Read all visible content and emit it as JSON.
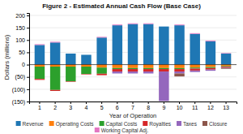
{
  "chart_data": {
    "type": "bar",
    "stacked": true,
    "title": "Figure 2 - Estimated Annual Cash Flow (Base Case)",
    "xlabel": "Year of Operation",
    "ylabel": "Dollars (millions)",
    "categories": [
      "1",
      "2",
      "3",
      "4",
      "5",
      "6",
      "7",
      "8",
      "9",
      "10",
      "11",
      "12",
      "13"
    ],
    "series": [
      {
        "name": "Revenue",
        "values": [
          80,
          90,
          45,
          40,
          110,
          160,
          165,
          165,
          155,
          160,
          125,
          95,
          45
        ]
      },
      {
        "name": "Operating Costs",
        "values": [
          -8,
          -8,
          -8,
          -8,
          -12,
          -14,
          -14,
          -14,
          -14,
          -14,
          -12,
          -10,
          -6
        ]
      },
      {
        "name": "Capital Costs",
        "values": [
          -50,
          -95,
          -60,
          -30,
          -25,
          -4,
          -4,
          -4,
          -4,
          -4,
          -4,
          -4,
          -2
        ]
      },
      {
        "name": "Royalties",
        "values": [
          -4,
          -4,
          -2,
          -2,
          -6,
          -10,
          -10,
          -10,
          -10,
          -10,
          -8,
          -6,
          -3
        ]
      },
      {
        "name": "Taxes",
        "values": [
          0,
          0,
          0,
          0,
          0,
          -8,
          -8,
          -8,
          -120,
          -8,
          -6,
          -5,
          -2
        ]
      },
      {
        "name": "Closure",
        "values": [
          0,
          0,
          0,
          0,
          0,
          0,
          0,
          0,
          0,
          -12,
          0,
          0,
          -4
        ]
      },
      {
        "name": "Working Capital Adj.",
        "values": [
          3,
          3,
          0,
          0,
          3,
          3,
          3,
          3,
          0,
          3,
          3,
          3,
          2
        ]
      }
    ],
    "ylim": [
      -150,
      210
    ],
    "yticks": [
      {
        "value": -150,
        "label": "(150)"
      },
      {
        "value": -100,
        "label": "(100)"
      },
      {
        "value": -50,
        "label": "(50)"
      },
      0,
      50,
      100,
      150,
      200
    ],
    "grid": true,
    "legend": "bottom"
  }
}
